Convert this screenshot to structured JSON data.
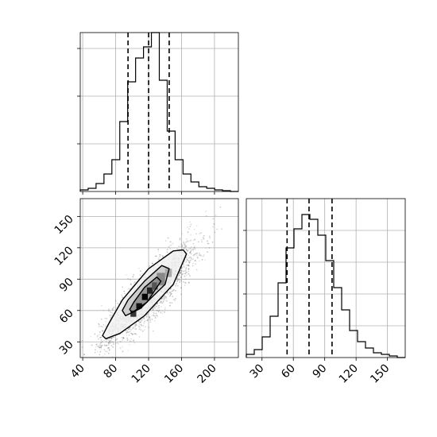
{
  "chart_data": [
    {
      "id": "hist-x",
      "type": "histogram",
      "xlim": [
        37,
        229
      ],
      "ylim": [
        0,
        1.0
      ],
      "bin_edges": [
        37,
        46.6,
        56.2,
        65.8,
        75.4,
        85,
        94.6,
        104.2,
        113.8,
        123.4,
        133,
        142.6,
        152.2,
        161.8,
        171.4,
        181,
        190.6,
        200.2,
        209.8,
        219.4,
        229
      ],
      "counts": [
        0.01,
        0.02,
        0.05,
        0.11,
        0.2,
        0.44,
        0.69,
        0.84,
        0.91,
        1.0,
        0.7,
        0.38,
        0.2,
        0.11,
        0.06,
        0.03,
        0.02,
        0.01,
        0.005,
        0.0
      ],
      "quantile_lines": [
        95,
        120,
        145
      ],
      "x_ticks": [
        40,
        80,
        120,
        160,
        200
      ],
      "y_ticks": [
        0.3,
        0.6,
        0.9
      ],
      "grid": true
    },
    {
      "id": "scatter-joint",
      "type": "scatter",
      "xlim": [
        37,
        229
      ],
      "ylim": [
        15,
        167
      ],
      "x_ticks": [
        40,
        80,
        120,
        160,
        200
      ],
      "y_ticks": [
        30,
        60,
        90,
        120,
        150
      ],
      "x_tick_labels": [
        "40",
        "80",
        "120",
        "160",
        "200"
      ],
      "y_tick_labels": [
        "30",
        "60",
        "90",
        "120",
        "150"
      ],
      "grid": true,
      "contours": [
        {
          "level": "outer",
          "points": [
            [
              68,
              33
            ],
            [
              85,
              38
            ],
            [
              115,
              55
            ],
            [
              150,
              85
            ],
            [
              166,
              114
            ],
            [
              162,
              118
            ],
            [
              150,
              117
            ],
            [
              120,
              100
            ],
            [
              88,
              70
            ],
            [
              72,
              48
            ],
            [
              64,
              36
            ]
          ]
        },
        {
          "level": "mid",
          "points": [
            [
              92,
              55
            ],
            [
              110,
              62
            ],
            [
              140,
              85
            ],
            [
              145,
              100
            ],
            [
              136,
              103
            ],
            [
              115,
              88
            ],
            [
              95,
              70
            ],
            [
              88,
              60
            ]
          ]
        },
        {
          "level": "inner",
          "points": [
            [
              100,
              58
            ],
            [
              118,
              68
            ],
            [
              135,
              88
            ],
            [
              130,
              92
            ],
            [
              115,
              82
            ],
            [
              102,
              68
            ],
            [
              97,
              61
            ]
          ]
        }
      ],
      "density_blocks": [
        {
          "x": [
            98,
            105
          ],
          "y": [
            54,
            60
          ],
          "shade": "#333333"
        },
        {
          "x": [
            105,
            112
          ],
          "y": [
            62,
            67
          ],
          "shade": "#111111"
        },
        {
          "x": [
            112,
            119
          ],
          "y": [
            70,
            76
          ],
          "shade": "#000000"
        },
        {
          "x": [
            118,
            125
          ],
          "y": [
            76,
            82
          ],
          "shade": "#222222"
        },
        {
          "x": [
            124,
            131
          ],
          "y": [
            80,
            87
          ],
          "shade": "#555555"
        },
        {
          "x": [
            130,
            140
          ],
          "y": [
            84,
            96
          ],
          "shade": "#888888"
        },
        {
          "x": [
            140,
            148
          ],
          "y": [
            92,
            100
          ],
          "shade": "#aaaaaa"
        }
      ]
    },
    {
      "id": "hist-y",
      "type": "histogram",
      "xlim": [
        15,
        167
      ],
      "ylim": [
        0,
        1.0
      ],
      "bin_edges": [
        15,
        22.6,
        30.2,
        37.8,
        45.4,
        53,
        60.6,
        68.2,
        75.8,
        83.4,
        91,
        98.6,
        106.2,
        113.8,
        121.4,
        129,
        136.6,
        144.2,
        151.8,
        159.4,
        167
      ],
      "counts": [
        0.02,
        0.05,
        0.13,
        0.26,
        0.47,
        0.69,
        0.81,
        0.9,
        0.87,
        0.77,
        0.61,
        0.44,
        0.3,
        0.17,
        0.1,
        0.06,
        0.03,
        0.02,
        0.01,
        0.0
      ],
      "quantile_lines": [
        54,
        75,
        97
      ],
      "x_ticks": [
        30,
        60,
        90,
        120,
        150
      ],
      "x_tick_labels": [
        "30",
        "60",
        "90",
        "120",
        "150"
      ],
      "y_ticks": [
        0.2,
        0.4,
        0.6,
        0.8
      ],
      "grid": true
    }
  ]
}
